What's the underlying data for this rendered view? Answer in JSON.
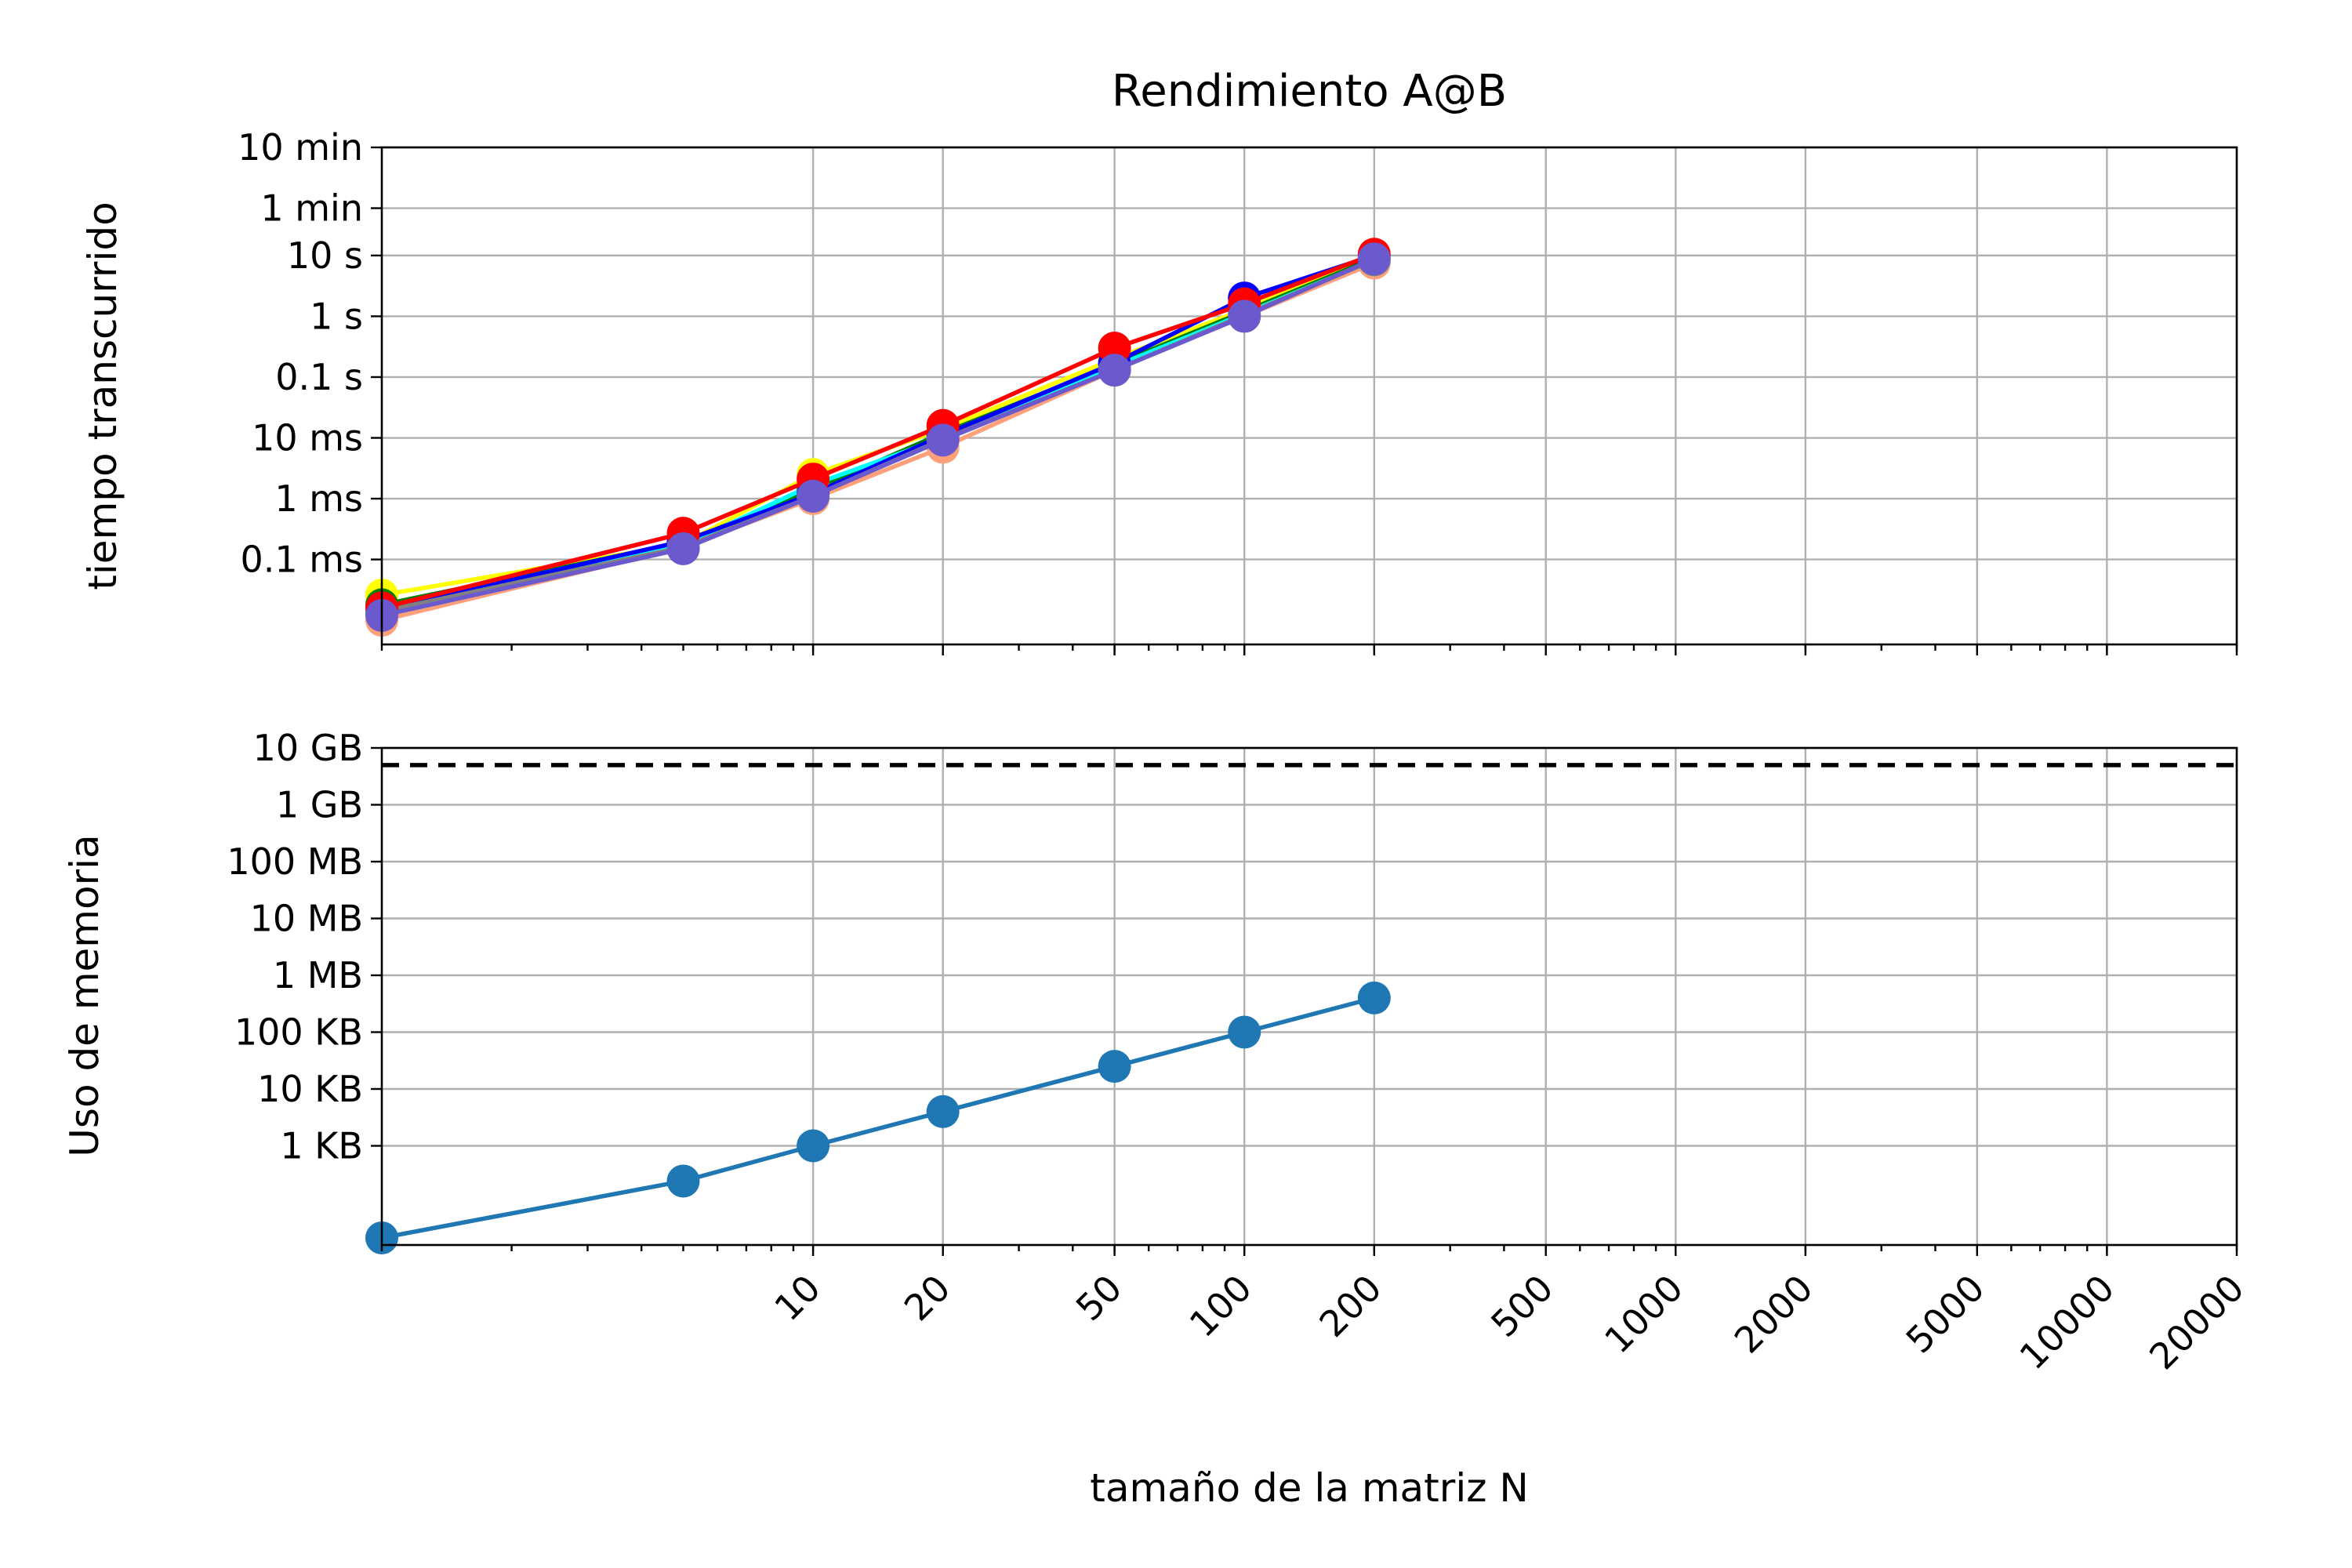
{
  "chart_data": {
    "type": "line",
    "title": "Rendimiento A@B",
    "xlabel": "tamaño de la matriz N",
    "xscale": "log",
    "xlim": [
      1,
      20000
    ],
    "xticks": [
      10,
      20,
      50,
      100,
      200,
      500,
      1000,
      2000,
      5000,
      10000,
      20000
    ],
    "xtick_labels": [
      "10",
      "20",
      "50",
      "100",
      "200",
      "500",
      "1000",
      "2000",
      "5000",
      "10000",
      "20000"
    ],
    "grid": true,
    "panels": [
      {
        "name": "time",
        "ylabel": "tiempo transcurrido",
        "yscale": "log",
        "unit": "s",
        "ylim": [
          4e-06,
          600
        ],
        "yticks": [
          0.0001,
          0.001,
          0.01,
          0.1,
          1,
          10,
          60,
          600
        ],
        "ytick_labels": [
          "0.1 ms",
          "1 ms",
          "10 ms",
          "0.1 s",
          "1 s",
          "10 s",
          "1 min",
          "10 min"
        ],
        "series": [
          {
            "color": "#ffff00",
            "x": [
              1,
              5,
              10,
              20,
              50,
              100,
              200
            ],
            "y": [
              2.6e-05,
              0.00018,
              0.0025,
              0.014,
              0.2,
              1.3,
              10
            ]
          },
          {
            "color": "#ffa07a",
            "x": [
              1,
              5,
              10,
              20,
              50,
              100,
              200
            ],
            "y": [
              1e-05,
              0.00016,
              0.001,
              0.007,
              0.13,
              1.0,
              7.5
            ]
          },
          {
            "color": "#008000",
            "x": [
              1,
              5,
              10,
              20,
              50,
              100,
              200
            ],
            "y": [
              1.8e-05,
              0.00019,
              0.0014,
              0.012,
              0.16,
              1.2,
              9
            ]
          },
          {
            "color": "#00ffff",
            "x": [
              1,
              5,
              10,
              20,
              50,
              100,
              200
            ],
            "y": [
              1.3e-05,
              0.00017,
              0.0017,
              0.01,
              0.15,
              1.1,
              8.5
            ]
          },
          {
            "color": "#0000ff",
            "x": [
              1,
              5,
              10,
              20,
              50,
              100,
              200
            ],
            "y": [
              1.5e-05,
              0.0002,
              0.0012,
              0.011,
              0.17,
              2.0,
              10
            ]
          },
          {
            "color": "#808080",
            "x": [
              1,
              5,
              10,
              20,
              50,
              100,
              200
            ],
            "y": [
              1.4e-05,
              0.00016,
              0.0011,
              0.0095,
              0.13,
              1.05,
              8.5
            ]
          },
          {
            "color": "#ff0000",
            "x": [
              1,
              5,
              10,
              20,
              50,
              100,
              200
            ],
            "y": [
              1.6e-05,
              0.00027,
              0.0021,
              0.016,
              0.3,
              1.6,
              10.5
            ]
          },
          {
            "color": "#6a5acd",
            "x": [
              1,
              5,
              10,
              20,
              50,
              100,
              200
            ],
            "y": [
              1.2e-05,
              0.00015,
              0.0011,
              0.0092,
              0.13,
              1.0,
              8.8
            ]
          }
        ]
      },
      {
        "name": "memory",
        "ylabel": "Uso de memoria",
        "yscale": "log",
        "unit": "bytes",
        "ylim": [
          18,
          10000000000
        ],
        "yticks": [
          1000,
          10000,
          100000,
          1000000,
          10000000,
          100000000,
          1000000000,
          10000000000
        ],
        "ytick_labels": [
          "1 KB",
          "10 KB",
          "100 KB",
          "1 MB",
          "10 MB",
          "100 MB",
          "1 GB",
          "10 GB"
        ],
        "hline": {
          "y": 5000000000,
          "style": "dashed",
          "color": "#000000"
        },
        "series": [
          {
            "color": "#1f77b4",
            "x": [
              1,
              5,
              10,
              20,
              50,
              100,
              200
            ],
            "y": [
              24,
              240,
              1000,
              4000,
              25000,
              100000,
              400000
            ]
          }
        ]
      }
    ]
  }
}
